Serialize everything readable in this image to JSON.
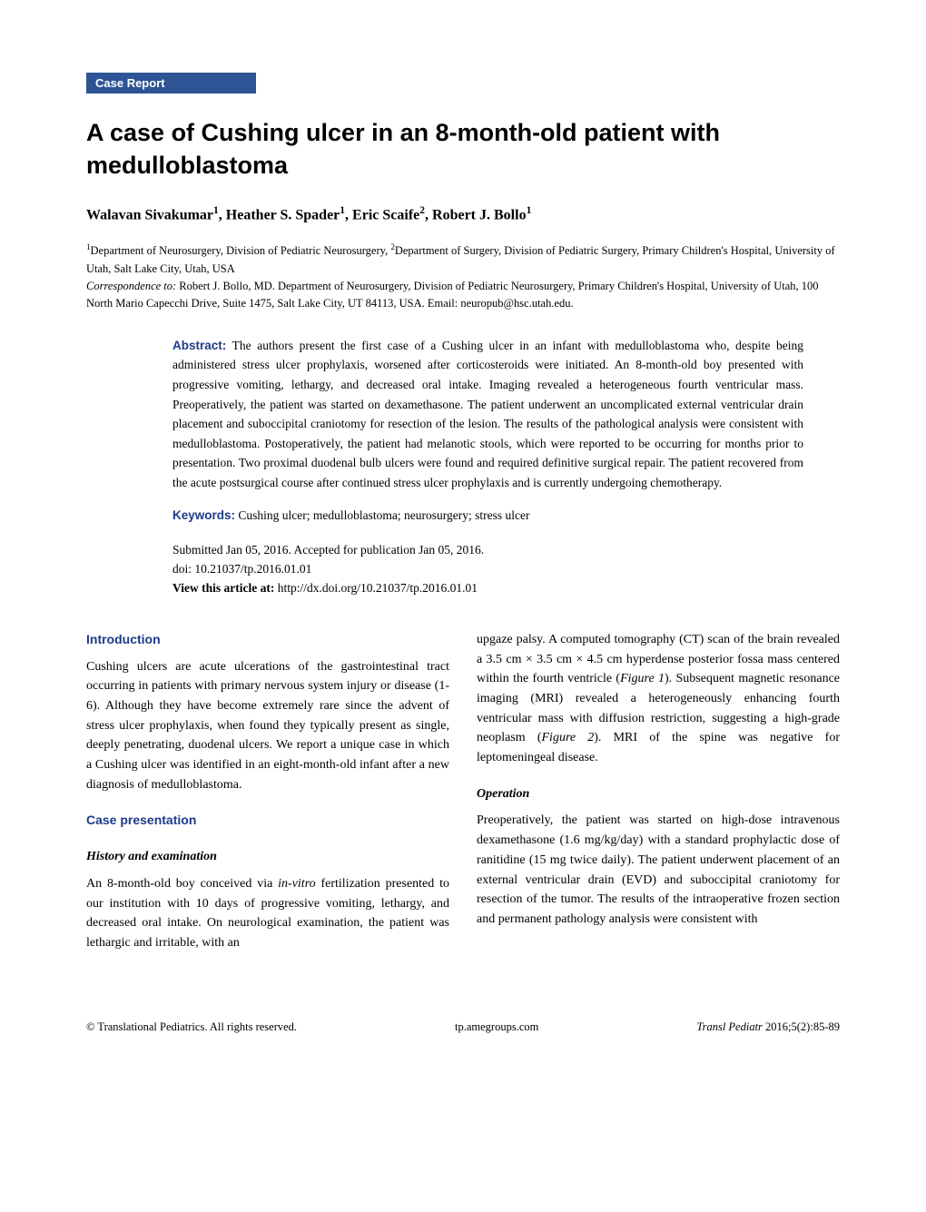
{
  "category_label": "Case Report",
  "title": "A case of Cushing ulcer in an 8-month-old patient with medulloblastoma",
  "authors_html": "Walavan Sivakumar<sup>1</sup>, Heather S. Spader<sup>1</sup>, Eric Scaife<sup>2</sup>, Robert J. Bollo<sup>1</sup>",
  "affiliations_html": "<sup>1</sup>Department of Neurosurgery, Division of Pediatric Neurosurgery, <sup>2</sup>Department of Surgery, Division of Pediatric Surgery, Primary Children's Hospital, University of Utah, Salt Lake City, Utah, USA",
  "correspondence_label": "Correspondence to:",
  "correspondence_text": " Robert J. Bollo, MD. Department of Neurosurgery, Division of Pediatric Neurosurgery, Primary Children's Hospital, University of Utah, 100 North Mario Capecchi Drive, Suite 1475, Salt Lake City, UT 84113, USA. Email: neuropub@hsc.utah.edu.",
  "abstract_label": "Abstract:",
  "abstract_text": " The authors present the first case of a Cushing ulcer in an infant with medulloblastoma who, despite being administered stress ulcer prophylaxis, worsened after corticosteroids were initiated. An 8-month-old boy presented with progressive vomiting, lethargy, and decreased oral intake. Imaging revealed a heterogeneous fourth ventricular mass. Preoperatively, the patient was started on dexamethasone. The patient underwent an uncomplicated external ventricular drain placement and suboccipital craniotomy for resection of the lesion. The results of the pathological analysis were consistent with medulloblastoma. Postoperatively, the patient had melanotic stools, which were reported to be occurring for months prior to presentation. Two proximal duodenal bulb ulcers were found and required definitive surgical repair. The patient recovered from the acute postsurgical course after continued stress ulcer prophylaxis and is currently undergoing chemotherapy.",
  "keywords_label": "Keywords:",
  "keywords_text": " Cushing ulcer; medulloblastoma; neurosurgery; stress ulcer",
  "submitted_text": "Submitted Jan 05, 2016. Accepted for publication Jan 05, 2016.",
  "doi_text": "doi: 10.21037/tp.2016.01.01",
  "view_label": "View this article at:",
  "view_url": " http://dx.doi.org/10.21037/tp.2016.01.01",
  "intro_heading": "Introduction",
  "intro_text": "Cushing ulcers are acute ulcerations of the gastrointestinal tract occurring in patients with primary nervous system injury or disease (1-6). Although they have become extremely rare since the advent of stress ulcer prophylaxis, when found they typically present as single, deeply penetrating, duodenal ulcers. We report a unique case in which a Cushing ulcer was identified in an eight-month-old infant after a new diagnosis of medulloblastoma.",
  "case_heading": "Case presentation",
  "history_heading": "History and examination",
  "history_text_html": "An 8-month-old boy conceived via <em>in-vitro</em> fertilization presented to our institution with 10 days of progressive vomiting, lethargy, and decreased oral intake. On neurological examination, the patient was lethargic and irritable, with an",
  "col2_para1_html": "upgaze palsy. A computed tomography (CT) scan of the brain revealed a 3.5 cm × 3.5 cm × 4.5 cm hyperdense posterior fossa mass centered within the fourth ventricle (<em>Figure 1</em>). Subsequent magnetic resonance imaging (MRI) revealed a heterogeneously enhancing fourth ventricular mass with diffusion restriction, suggesting a high-grade neoplasm (<em>Figure 2</em>). MRI of the spine was negative for leptomeningeal disease.",
  "operation_heading": "Operation",
  "operation_text": "Preoperatively, the patient was started on high-dose intravenous dexamethasone (1.6 mg/kg/day) with a standard prophylactic dose of ranitidine (15 mg twice daily). The patient underwent placement of an external ventricular drain (EVD) and suboccipital craniotomy for resection of the tumor. The results of the intraoperative frozen section and permanent pathology analysis were consistent with",
  "footer_left": "© Translational Pediatrics. All rights reserved.",
  "footer_center": "tp.amegroups.com",
  "footer_right_html": "<em>Transl Pediatr</em> 2016;5(2):85-89",
  "colors": {
    "badge_bg": "#2e5496",
    "heading_color": "#1e3a8a",
    "text_color": "#000000",
    "background": "#ffffff"
  },
  "typography": {
    "title_fontsize": 27,
    "authors_fontsize": 16,
    "body_fontsize": 14,
    "affil_fontsize": 12.5,
    "abstract_fontsize": 13.5,
    "footer_fontsize": 12.5
  }
}
